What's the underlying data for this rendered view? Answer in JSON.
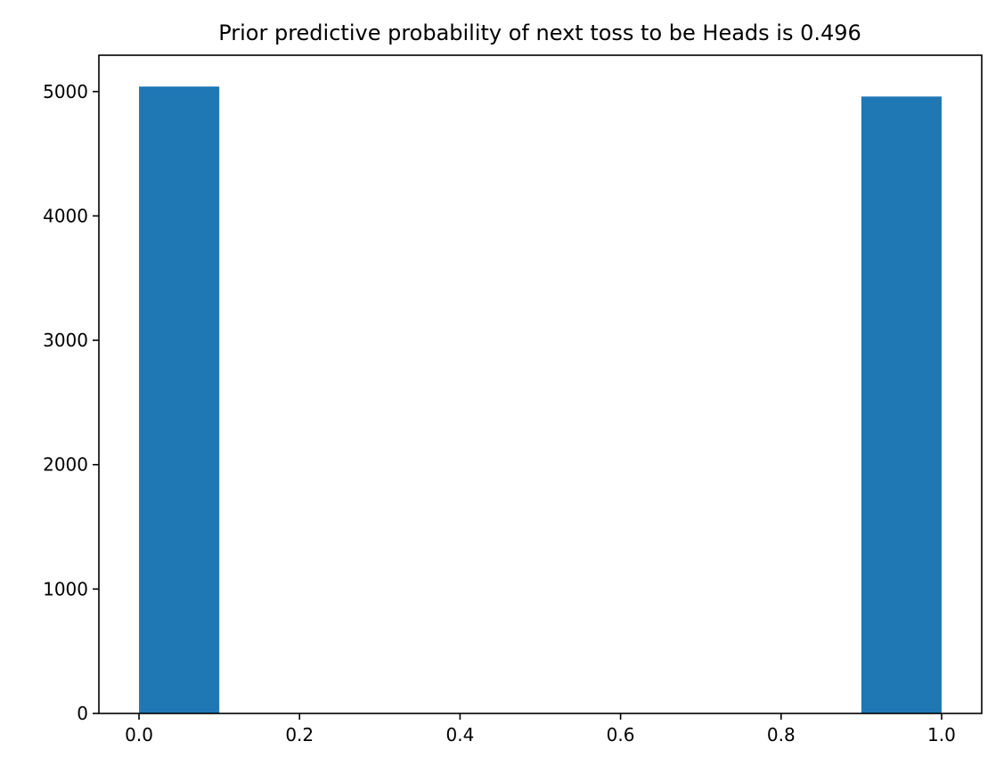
{
  "chart_data": {
    "type": "bar",
    "title": "Prior predictive probability of next toss to be Heads is 0.496",
    "xlabel": "",
    "ylabel": "",
    "bars": [
      {
        "x_start": 0.0,
        "x_end": 0.1,
        "value": 5040
      },
      {
        "x_start": 0.9,
        "x_end": 1.0,
        "value": 4960
      }
    ],
    "xlim": [
      -0.05,
      1.05
    ],
    "ylim": [
      0,
      5292
    ],
    "x_ticks": [
      0.0,
      0.2,
      0.4,
      0.6,
      0.8,
      1.0
    ],
    "x_tick_labels": [
      "0.0",
      "0.2",
      "0.4",
      "0.6",
      "0.8",
      "1.0"
    ],
    "y_ticks": [
      0,
      1000,
      2000,
      3000,
      4000,
      5000
    ],
    "y_tick_labels": [
      "0",
      "1000",
      "2000",
      "3000",
      "4000",
      "5000"
    ],
    "grid": false,
    "bar_color": "#1f77b4"
  }
}
